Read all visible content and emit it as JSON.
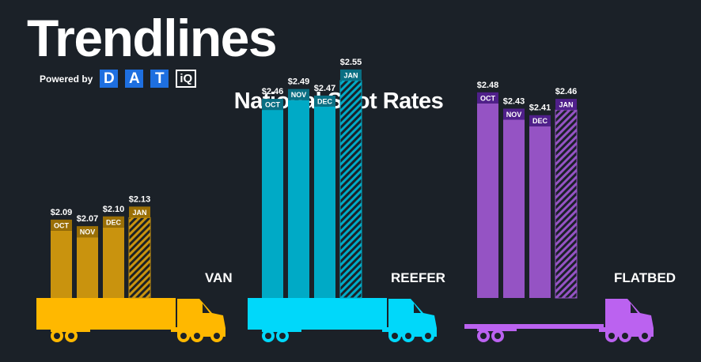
{
  "header": {
    "title": "Trendlines",
    "powered_by": "Powered by",
    "brand_letters": [
      "D",
      "A",
      "T"
    ],
    "brand_suffix": "iQ",
    "brand_color": "#1e6fe0"
  },
  "chart_data": [
    {
      "type": "bar",
      "title": "National Spot Rates",
      "series_label": "VAN",
      "categories": [
        "OCT",
        "NOV",
        "DEC",
        "JAN"
      ],
      "values": [
        2.09,
        2.07,
        2.1,
        2.13
      ],
      "value_labels": [
        "$2.09",
        "$2.07",
        "$2.10",
        "$2.13"
      ],
      "hatched_category": "JAN",
      "colors": {
        "bar": "#c9930e",
        "tag": "#9a6f06",
        "truck": "#ffb800"
      }
    },
    {
      "type": "bar",
      "series_label": "REEFER",
      "categories": [
        "OCT",
        "NOV",
        "DEC",
        "JAN"
      ],
      "values": [
        2.46,
        2.49,
        2.47,
        2.55
      ],
      "value_labels": [
        "$2.46",
        "$2.49",
        "$2.47",
        "$2.55"
      ],
      "hatched_category": "JAN",
      "colors": {
        "bar": "#00aac6",
        "tag": "#0a6f83",
        "truck": "#00d8fa"
      }
    },
    {
      "type": "bar",
      "series_label": "FLATBED",
      "categories": [
        "OCT",
        "NOV",
        "DEC",
        "JAN"
      ],
      "values": [
        2.48,
        2.43,
        2.41,
        2.46
      ],
      "value_labels": [
        "$2.48",
        "$2.43",
        "$2.41",
        "$2.46"
      ],
      "hatched_category": "JAN",
      "colors": {
        "bar": "#9553c4",
        "tag": "#4f1f8a",
        "truck": "#bb62f0"
      }
    }
  ]
}
